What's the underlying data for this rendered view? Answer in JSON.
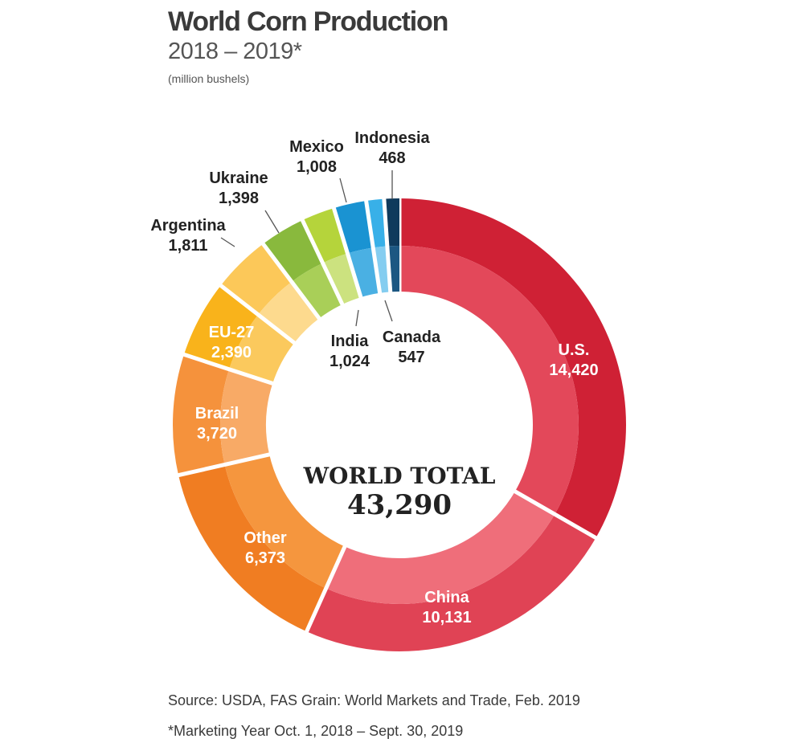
{
  "header": {
    "title": "World Corn Production",
    "subtitle": "2018 – 2019*",
    "unit": "(million bushels)"
  },
  "footer": {
    "source": "Source: USDA, FAS Grain: World Markets and Trade, Feb. 2019",
    "footnote": "*Marketing Year Oct. 1, 2018 – Sept. 30, 2019"
  },
  "chart_data": {
    "type": "pie",
    "variant": "donut",
    "title": "World Corn Production",
    "subtitle": "2018 – 2019*",
    "unit": "(million bushels)",
    "center_label": "WORLD TOTAL",
    "center_value": "43,290",
    "total": 43290,
    "slices": [
      {
        "name": "U.S.",
        "value": 14420,
        "value_label": "14,420",
        "color": "#cf2135",
        "inner_color": "#e3485a",
        "label_color": "#ffffff"
      },
      {
        "name": "China",
        "value": 10131,
        "value_label": "10,131",
        "color": "#e04355",
        "inner_color": "#ef6e7a",
        "label_color": "#ffffff"
      },
      {
        "name": "Other",
        "value": 6373,
        "value_label": "6,373",
        "color": "#f07d22",
        "inner_color": "#f5963e",
        "label_color": "#ffffff"
      },
      {
        "name": "Brazil",
        "value": 3720,
        "value_label": "3,720",
        "color": "#f5923c",
        "inner_color": "#f8aa66",
        "label_color": "#ffffff"
      },
      {
        "name": "EU-27",
        "value": 2390,
        "value_label": "2,390",
        "color": "#f9b31b",
        "inner_color": "#fbc95d",
        "label_color": "#ffffff"
      },
      {
        "name": "Argentina",
        "value": 1811,
        "value_label": "1,811",
        "color": "#fcc859",
        "inner_color": "#fdda8e",
        "label_color": "#222222"
      },
      {
        "name": "Ukraine",
        "value": 1398,
        "value_label": "1,398",
        "color": "#89b93d",
        "inner_color": "#a9cf58",
        "label_color": "#222222"
      },
      {
        "name": "India",
        "value": 1024,
        "value_label": "1,024",
        "color": "#b5d43b",
        "inner_color": "#cce27f",
        "label_color": "#222222"
      },
      {
        "name": "Mexico",
        "value": 1008,
        "value_label": "1,008",
        "color": "#1a93d2",
        "inner_color": "#4ab0e3",
        "label_color": "#222222"
      },
      {
        "name": "Canada",
        "value": 547,
        "value_label": "547",
        "color": "#38b0e8",
        "inner_color": "#84cdf0",
        "label_color": "#222222"
      },
      {
        "name": "Indonesia",
        "value": 468,
        "value_label": "468",
        "color": "#0f3a5c",
        "inner_color": "#1c5782",
        "label_color": "#222222"
      }
    ]
  }
}
